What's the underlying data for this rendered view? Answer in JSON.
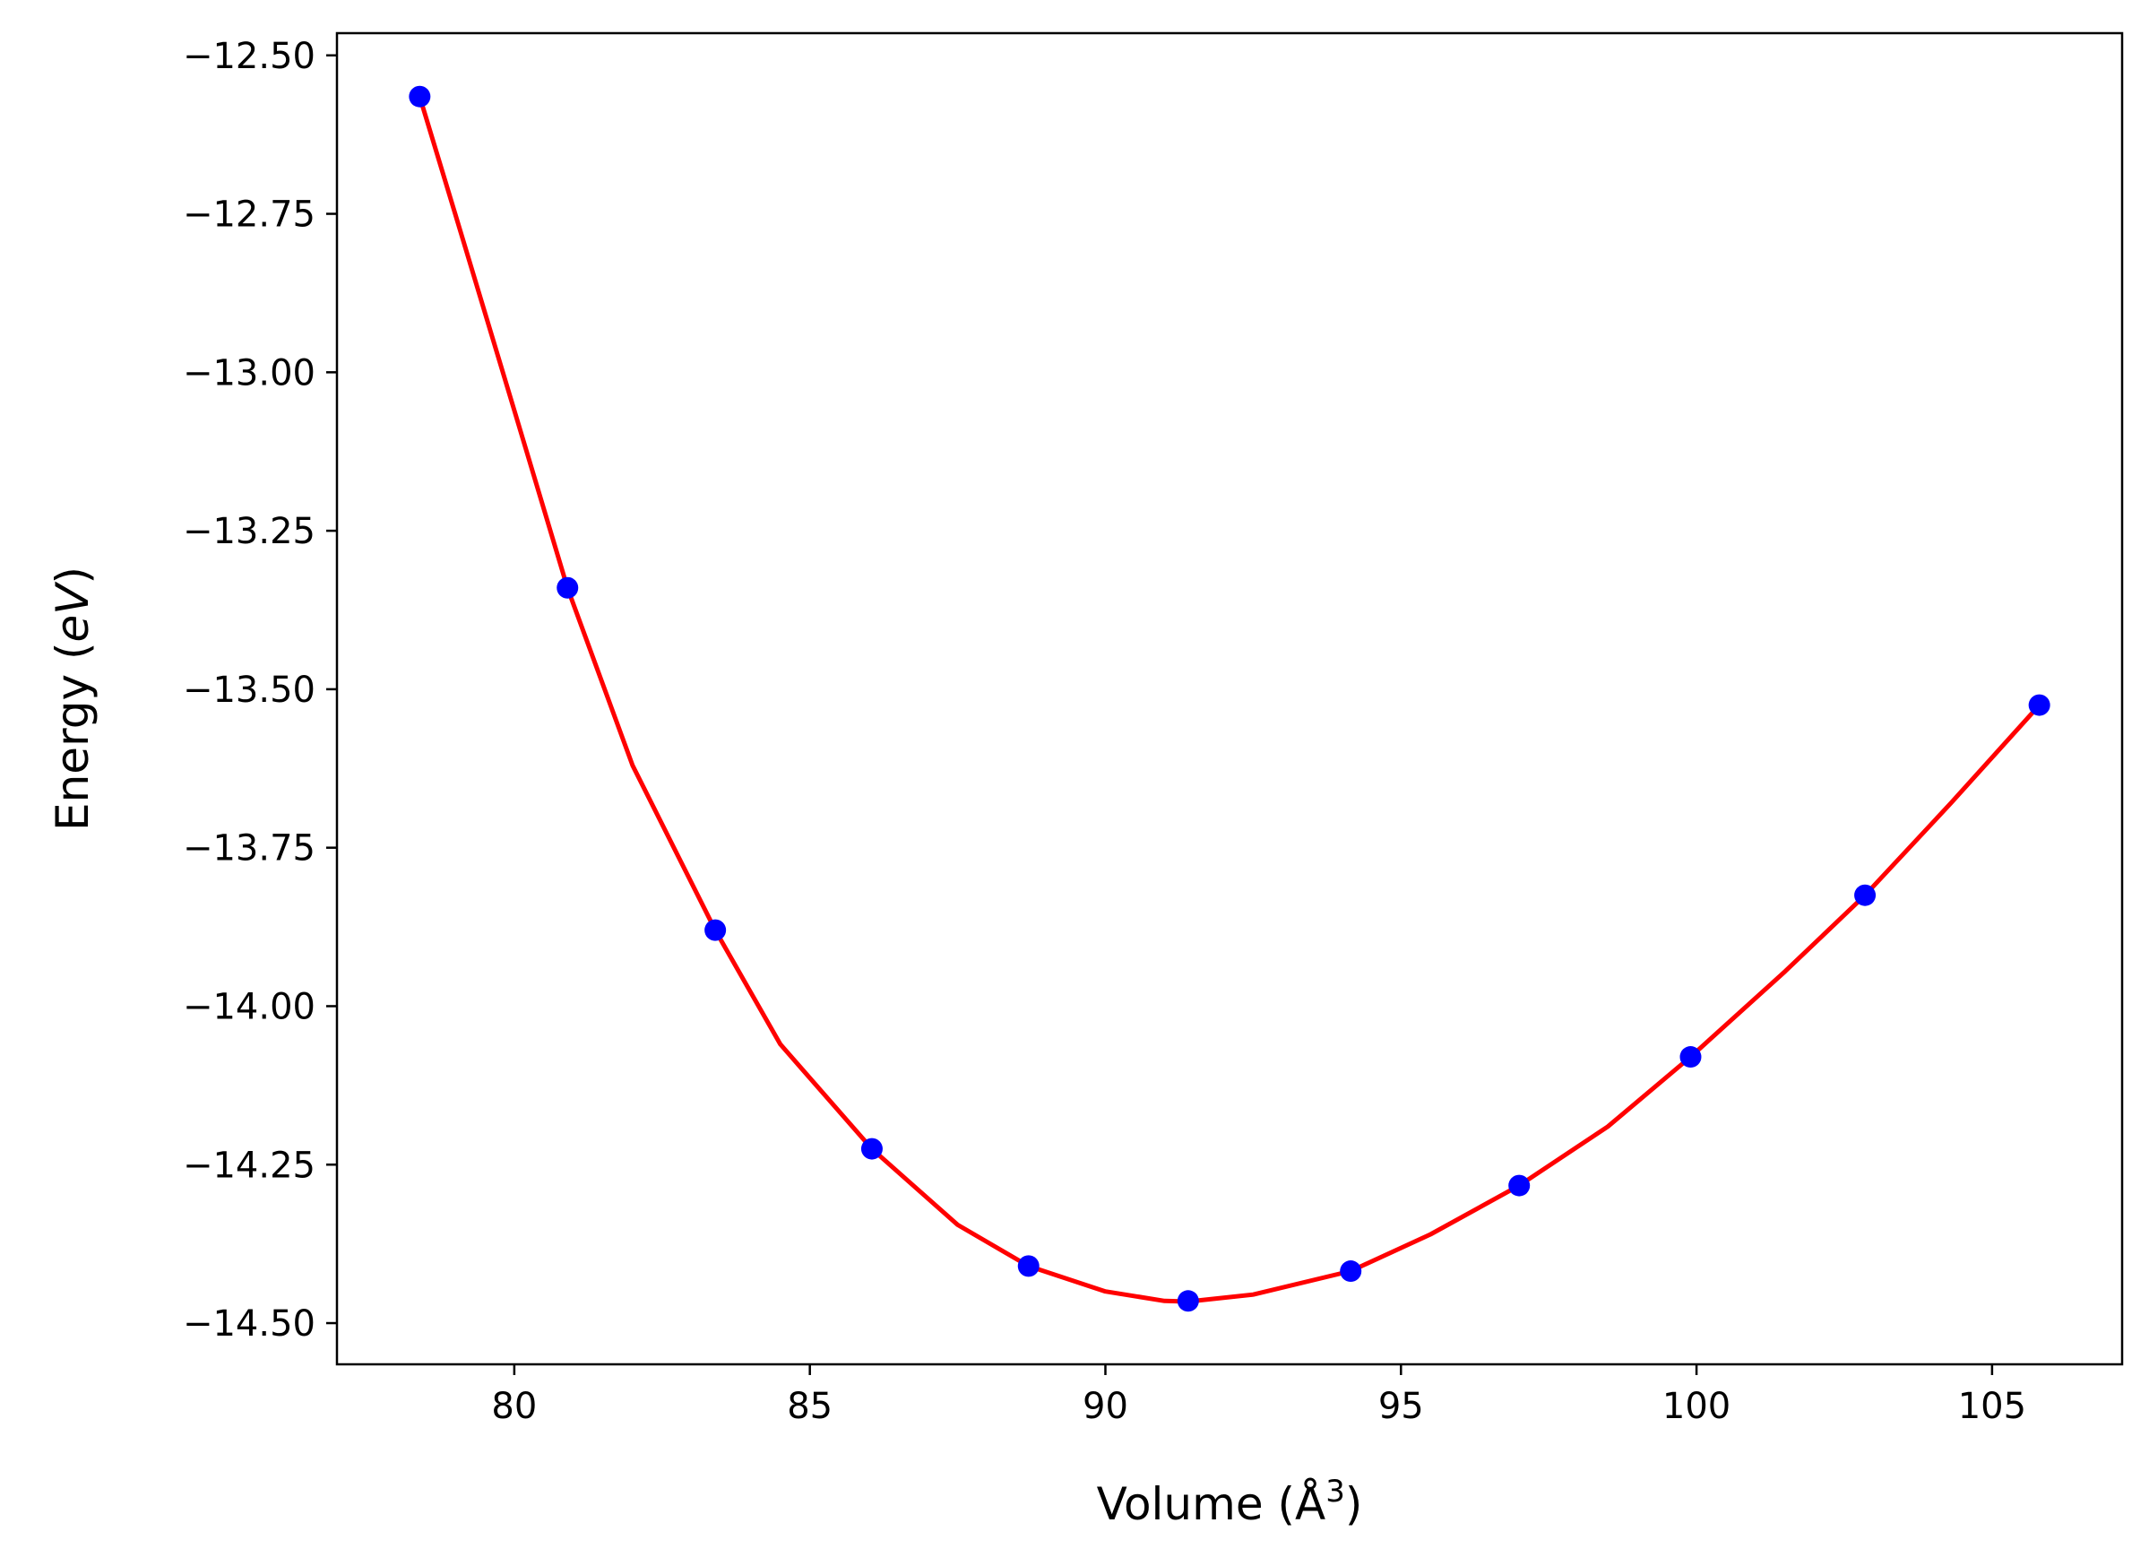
{
  "chart_data": {
    "type": "scatter",
    "xlabel": "Volume (Å",
    "xlabel_sup": "3",
    "xlabel_close": ")",
    "ylabel_prefix": "Energy (",
    "ylabel_italic": "eV",
    "ylabel_suffix": ")",
    "xlim": [
      77.0,
      107.2
    ],
    "ylim": [
      -14.565,
      -12.465
    ],
    "xticks": [
      80,
      85,
      90,
      95,
      100,
      105
    ],
    "xtick_labels": [
      "80",
      "85",
      "90",
      "95",
      "100",
      "105"
    ],
    "yticks": [
      -12.5,
      -12.75,
      -13.0,
      -13.25,
      -13.5,
      -13.75,
      -14.0,
      -14.25,
      -14.5
    ],
    "ytick_labels": [
      "−12.50",
      "−12.75",
      "−13.00",
      "−13.25",
      "−13.50",
      "−13.75",
      "−14.00",
      "−14.25",
      "−14.50"
    ],
    "grid": false,
    "series": [
      {
        "kind": "points",
        "color": "#0000ff",
        "x": [
          78.4,
          80.9,
          83.4,
          86.05,
          88.7,
          91.4,
          94.15,
          97.0,
          99.9,
          102.85,
          105.8
        ],
        "y": [
          -12.565,
          -13.34,
          -13.88,
          -14.225,
          -14.41,
          -14.465,
          -14.418,
          -14.283,
          -14.08,
          -13.825,
          -13.525
        ]
      },
      {
        "kind": "fit-line",
        "color": "#ff0000",
        "x": [
          78.4,
          79.0,
          80.0,
          80.9,
          82.0,
          83.4,
          84.5,
          86.05,
          87.5,
          88.7,
          90.0,
          91.0,
          91.4,
          92.5,
          94.15,
          95.5,
          97.0,
          98.5,
          99.9,
          101.5,
          102.85,
          104.3,
          105.8
        ],
        "y": [
          -12.565,
          -12.75,
          -13.06,
          -13.34,
          -13.62,
          -13.88,
          -14.06,
          -14.225,
          -14.345,
          -14.41,
          -14.45,
          -14.465,
          -14.466,
          -14.455,
          -14.418,
          -14.36,
          -14.283,
          -14.19,
          -14.08,
          -13.945,
          -13.825,
          -13.68,
          -13.525
        ]
      }
    ]
  },
  "colors": {
    "points": "#0000ff",
    "fit_line": "#ff0000",
    "axes": "#000000"
  }
}
